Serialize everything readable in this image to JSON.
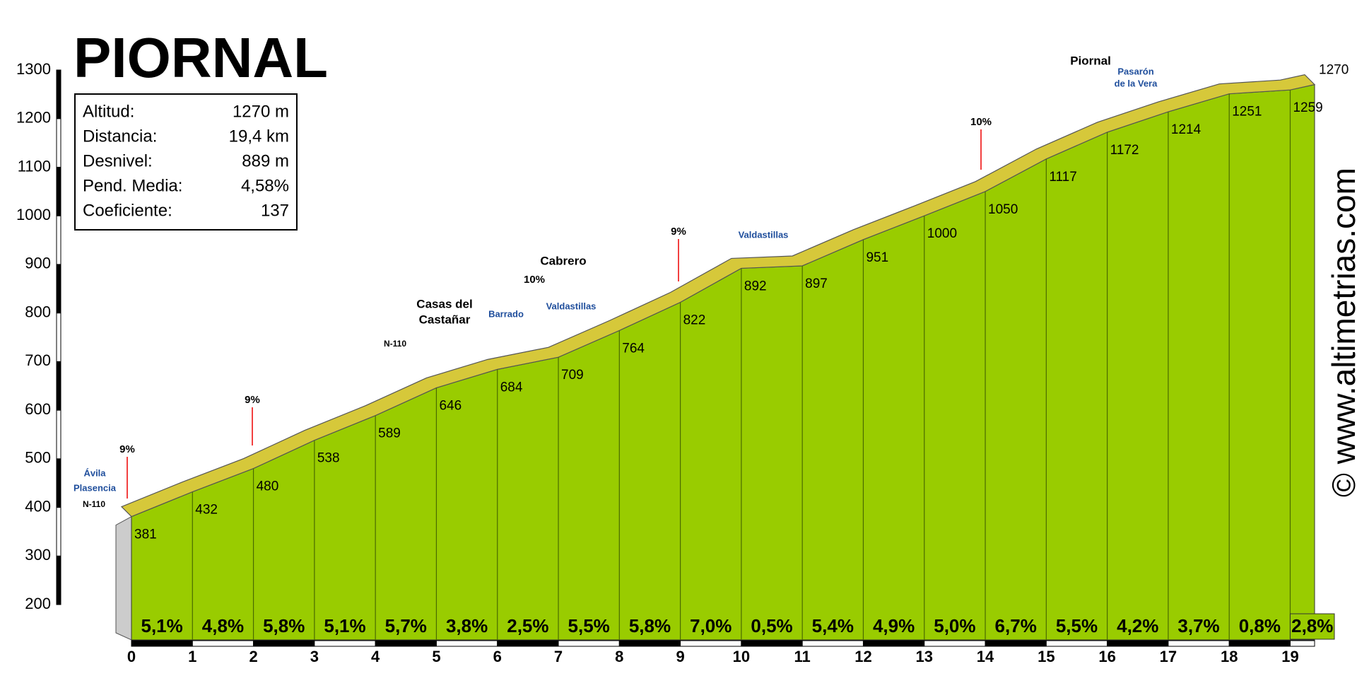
{
  "chart_data": {
    "type": "area",
    "title": "PIORNAL",
    "watermark": "© www.altimetrias.com",
    "info": [
      {
        "label": "Altitud:",
        "value": "1270 m"
      },
      {
        "label": "Distancia:",
        "value": "19,4 km"
      },
      {
        "label": "Desnivel:",
        "value": "889 m"
      },
      {
        "label": "Pend. Media:",
        "value": "4,58%"
      },
      {
        "label": "Coeficiente:",
        "value": "137"
      }
    ],
    "x": [
      0,
      1,
      2,
      3,
      4,
      5,
      6,
      7,
      8,
      9,
      10,
      11,
      12,
      13,
      14,
      15,
      16,
      17,
      18,
      19,
      19.4
    ],
    "values": [
      381,
      432,
      480,
      538,
      589,
      646,
      684,
      709,
      764,
      822,
      892,
      897,
      951,
      1000,
      1050,
      1117,
      1172,
      1214,
      1251,
      1259,
      1270
    ],
    "gradients": [
      "5,1%",
      "4,8%",
      "5,8%",
      "5,1%",
      "5,7%",
      "3,8%",
      "2,5%",
      "5,5%",
      "5,8%",
      "7,0%",
      "0,5%",
      "5,4%",
      "4,9%",
      "5,0%",
      "6,7%",
      "5,5%",
      "4,2%",
      "3,7%",
      "0,8%",
      "2,8%"
    ],
    "annotations": [
      "9%",
      "Ávila",
      "Plasencia",
      "N-110",
      "9%",
      "N-110",
      "Casas del",
      "Castañar",
      "Barrado",
      "10%",
      "Cabrero",
      "Valdastillas",
      "9%",
      "Valdastillas",
      "10%",
      "Piornal",
      "Pasarón",
      "de la Vera"
    ],
    "xlim": [
      0,
      19.4
    ],
    "xticks": [
      0,
      1,
      2,
      3,
      4,
      5,
      6,
      7,
      8,
      9,
      10,
      11,
      12,
      13,
      14,
      15,
      16,
      17,
      18,
      19
    ],
    "ylim": [
      200,
      1300
    ],
    "yticks": [
      200,
      300,
      400,
      500,
      600,
      700,
      800,
      900,
      1000,
      1100,
      1200,
      1300
    ],
    "color": "#99cc00",
    "road_color": "#d6c83a"
  }
}
